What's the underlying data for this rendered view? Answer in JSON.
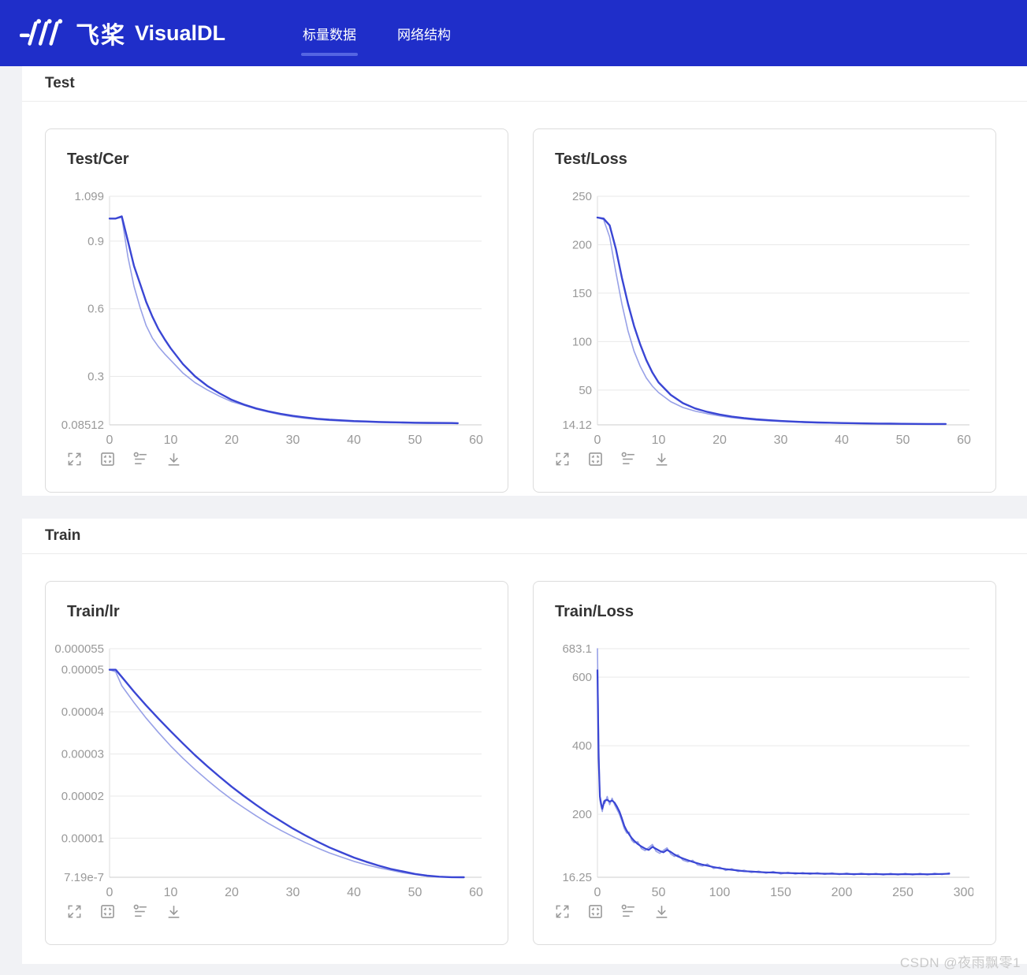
{
  "header": {
    "brand_cn": "飞桨",
    "brand_en": "VisualDL",
    "tabs": [
      {
        "label": "标量数据",
        "active": true
      },
      {
        "label": "网络结构",
        "active": false
      }
    ]
  },
  "colors": {
    "header_background": "#1f2ec9",
    "tab_underline": "#5565e2",
    "line_smoothed": "#3a46d4",
    "line_raw": "#98a1e7",
    "grid": "#e9e9e9",
    "axis": "#cccccc",
    "tick_text": "#999999"
  },
  "sections": [
    {
      "title": "Test"
    },
    {
      "title": "Train"
    }
  ],
  "toolbar": {
    "icons": [
      "maximize-icon",
      "actual-size-icon",
      "runs-filter-icon",
      "download-icon"
    ]
  },
  "watermark": {
    "text": "CSDN @夜雨飘零1"
  },
  "chart_data": [
    {
      "type": "line",
      "title": "Test/Cer",
      "xlabel": "",
      "ylabel": "",
      "xlim": [
        0,
        60
      ],
      "ylim": [
        0.08512,
        1.099
      ],
      "xticks": [
        0,
        10,
        20,
        30,
        40,
        50,
        60
      ],
      "yticks": [
        {
          "v": 1.099,
          "label": "1.099"
        },
        {
          "v": 0.9,
          "label": "0.9"
        },
        {
          "v": 0.6,
          "label": "0.6"
        },
        {
          "v": 0.3,
          "label": "0.3"
        },
        {
          "v": 0.08512,
          "label": "0.08512"
        }
      ],
      "series": [
        {
          "name": "original",
          "color": "#98a1e7",
          "width": 1.6,
          "x": [
            0,
            1,
            2,
            3,
            4,
            5,
            6,
            7,
            8,
            9,
            10,
            12,
            14,
            16,
            18,
            20,
            22,
            24,
            26,
            28,
            30,
            32,
            34,
            36,
            38,
            40,
            42,
            44,
            46,
            48,
            50,
            52,
            54,
            56,
            57
          ],
          "y": [
            1.0,
            1.0,
            1.005,
            0.83,
            0.7,
            0.605,
            0.525,
            0.47,
            0.432,
            0.4,
            0.372,
            0.315,
            0.272,
            0.24,
            0.212,
            0.188,
            0.172,
            0.155,
            0.142,
            0.13,
            0.121,
            0.114,
            0.109,
            0.105,
            0.102,
            0.0995,
            0.098,
            0.0955,
            0.0945,
            0.094,
            0.0925,
            0.0925,
            0.0915,
            0.0915,
            0.091
          ]
        },
        {
          "name": "smoothed",
          "color": "#3a46d4",
          "width": 2.4,
          "x": [
            0,
            1,
            2,
            3,
            4,
            5,
            6,
            7,
            8,
            9,
            10,
            12,
            14,
            16,
            18,
            20,
            22,
            24,
            26,
            28,
            30,
            32,
            34,
            36,
            38,
            40,
            42,
            44,
            46,
            48,
            50,
            52,
            54,
            56,
            57
          ],
          "y": [
            1.0,
            1.0,
            1.01,
            0.9,
            0.79,
            0.71,
            0.63,
            0.565,
            0.51,
            0.465,
            0.425,
            0.355,
            0.3,
            0.258,
            0.225,
            0.196,
            0.175,
            0.158,
            0.145,
            0.134,
            0.125,
            0.118,
            0.112,
            0.108,
            0.105,
            0.102,
            0.1,
            0.098,
            0.0965,
            0.0955,
            0.0945,
            0.094,
            0.0935,
            0.093,
            0.0925
          ]
        }
      ]
    },
    {
      "type": "line",
      "title": "Test/Loss",
      "xlabel": "",
      "ylabel": "",
      "xlim": [
        0,
        60
      ],
      "ylim": [
        14.12,
        250
      ],
      "xticks": [
        0,
        10,
        20,
        30,
        40,
        50,
        60
      ],
      "yticks": [
        {
          "v": 250,
          "label": "250"
        },
        {
          "v": 200,
          "label": "200"
        },
        {
          "v": 150,
          "label": "150"
        },
        {
          "v": 100,
          "label": "100"
        },
        {
          "v": 50,
          "label": "50"
        },
        {
          "v": 14.12,
          "label": "14.12"
        }
      ],
      "series": [
        {
          "name": "original",
          "color": "#98a1e7",
          "width": 1.6,
          "x": [
            0,
            1,
            2,
            3,
            4,
            5,
            6,
            7,
            8,
            9,
            10,
            12,
            14,
            16,
            18,
            20,
            22,
            24,
            26,
            28,
            30,
            32,
            34,
            36,
            38,
            40,
            42,
            44,
            46,
            48,
            50,
            52,
            54,
            56,
            57
          ],
          "y": [
            228,
            226,
            208,
            172,
            139,
            111,
            90,
            74.5,
            62.5,
            54,
            47.5,
            38,
            32,
            28.3,
            25.6,
            23.4,
            21.6,
            20.2,
            19.1,
            18.3,
            17.6,
            17.1,
            16.6,
            16.3,
            16.0,
            15.8,
            15.55,
            15.4,
            15.25,
            15.15,
            15.05,
            15.0,
            14.95,
            14.9,
            14.9
          ]
        },
        {
          "name": "smoothed",
          "color": "#3a46d4",
          "width": 2.4,
          "x": [
            0,
            1,
            2,
            3,
            4,
            5,
            6,
            7,
            8,
            9,
            10,
            12,
            14,
            16,
            18,
            20,
            22,
            24,
            26,
            28,
            30,
            32,
            34,
            36,
            38,
            40,
            42,
            44,
            46,
            48,
            50,
            52,
            54,
            56,
            57
          ],
          "y": [
            228,
            227,
            220,
            196,
            166,
            139,
            116,
            97,
            81,
            68,
            58,
            45,
            36.5,
            31,
            27.5,
            24.8,
            22.6,
            21.0,
            19.8,
            18.9,
            18.1,
            17.5,
            17.0,
            16.6,
            16.3,
            16.0,
            15.8,
            15.6,
            15.45,
            15.3,
            15.2,
            15.1,
            15.05,
            15.0,
            15.0
          ]
        }
      ]
    },
    {
      "type": "line",
      "title": "Train/lr",
      "xlabel": "",
      "ylabel": "",
      "xlim": [
        0,
        60
      ],
      "ylim": [
        7.19e-07,
        5.5e-05
      ],
      "xticks": [
        0,
        10,
        20,
        30,
        40,
        50,
        60
      ],
      "yticks": [
        {
          "v": 5.5e-05,
          "label": "0.000055"
        },
        {
          "v": 5e-05,
          "label": "0.00005"
        },
        {
          "v": 4e-05,
          "label": "0.00004"
        },
        {
          "v": 3e-05,
          "label": "0.00003"
        },
        {
          "v": 2e-05,
          "label": "0.00002"
        },
        {
          "v": 1e-05,
          "label": "0.00001"
        },
        {
          "v": 7.19e-07,
          "label": "7.19e-7"
        }
      ],
      "series": [
        {
          "name": "original",
          "color": "#98a1e7",
          "width": 1.6,
          "x": [
            0,
            1,
            2,
            4,
            6,
            8,
            10,
            12,
            14,
            16,
            18,
            20,
            22,
            24,
            26,
            28,
            30,
            32,
            34,
            36,
            38,
            40,
            42,
            44,
            46,
            48,
            50,
            52,
            54,
            56,
            58
          ],
          "y": [
            5e-05,
            4.95e-05,
            4.62e-05,
            4.22e-05,
            3.85e-05,
            3.51e-05,
            3.19e-05,
            2.9e-05,
            2.63e-05,
            2.38e-05,
            2.14e-05,
            1.92e-05,
            1.72e-05,
            1.53e-05,
            1.35e-05,
            1.19e-05,
            1.04e-05,
            9e-06,
            7.7e-06,
            6.5e-06,
            5.5e-06,
            4.5e-06,
            3.7e-06,
            3e-06,
            2.4e-06,
            1.8e-06,
            1.4e-06,
            1e-06,
            8e-07,
            7.2e-07,
            7.19e-07
          ]
        },
        {
          "name": "smoothed",
          "color": "#3a46d4",
          "width": 2.4,
          "x": [
            0,
            1,
            2,
            4,
            6,
            8,
            10,
            12,
            14,
            16,
            18,
            20,
            22,
            24,
            26,
            28,
            30,
            32,
            34,
            36,
            38,
            40,
            42,
            44,
            46,
            48,
            50,
            52,
            54,
            56,
            58
          ],
          "y": [
            5e-05,
            5e-05,
            4.83e-05,
            4.48e-05,
            4.15e-05,
            3.84e-05,
            3.54e-05,
            3.25e-05,
            2.97e-05,
            2.71e-05,
            2.46e-05,
            2.22e-05,
            2e-05,
            1.79e-05,
            1.59e-05,
            1.41e-05,
            1.23e-05,
            1.07e-05,
            9.2e-06,
            7.8e-06,
            6.6e-06,
            5.4e-06,
            4.4e-06,
            3.5e-06,
            2.7e-06,
            2.1e-06,
            1.5e-06,
            1.1e-06,
            8.5e-07,
            7.4e-07,
            7.19e-07
          ]
        }
      ]
    },
    {
      "type": "line",
      "title": "Train/Loss",
      "xlabel": "",
      "ylabel": "",
      "xlim": [
        0,
        300
      ],
      "ylim": [
        16.25,
        683.1
      ],
      "xticks": [
        0,
        50,
        100,
        150,
        200,
        250,
        300
      ],
      "yticks": [
        {
          "v": 683.1,
          "label": "683.1"
        },
        {
          "v": 600,
          "label": "600"
        },
        {
          "v": 400,
          "label": "400"
        },
        {
          "v": 200,
          "label": "200"
        },
        {
          "v": 16.25,
          "label": "16.25"
        }
      ],
      "series": [
        {
          "name": "original",
          "color": "#98a1e7",
          "width": 1.6,
          "x": [
            0,
            1,
            2,
            3,
            4,
            5,
            6,
            8,
            10,
            12,
            14,
            16,
            18,
            20,
            22,
            24,
            26,
            28,
            30,
            33,
            36,
            39,
            42,
            45,
            48,
            51,
            54,
            57,
            60,
            63,
            66,
            70,
            74,
            78,
            82,
            86,
            90,
            95,
            100,
            105,
            110,
            115,
            120,
            126,
            132,
            138,
            144,
            150,
            156,
            162,
            168,
            174,
            180,
            186,
            192,
            198,
            204,
            210,
            216,
            222,
            228,
            234,
            240,
            246,
            252,
            258,
            264,
            270,
            276,
            282,
            288
          ],
          "y": [
            683,
            420,
            242,
            222,
            208,
            238,
            232,
            252,
            228,
            247,
            228,
            214,
            200,
            180,
            158,
            145,
            148,
            124,
            117,
            120,
            100,
            94,
            103,
            112,
            92,
            86,
            95,
            102,
            84,
            77,
            82,
            66,
            61,
            66,
            52,
            49,
            55,
            42,
            46,
            36,
            41,
            33,
            37,
            30,
            34,
            28,
            33,
            26,
            31,
            25.5,
            30,
            25,
            29.5,
            24.5,
            29,
            24,
            28.5,
            23.5,
            28,
            23.5,
            27.5,
            23,
            27.5,
            23,
            27.5,
            23,
            27.5,
            23,
            28,
            24,
            29
          ]
        },
        {
          "name": "smoothed",
          "color": "#3a46d4",
          "width": 2.2,
          "x": [
            0,
            1,
            2,
            3,
            4,
            5,
            6,
            8,
            10,
            12,
            14,
            16,
            18,
            20,
            22,
            24,
            26,
            28,
            30,
            33,
            36,
            39,
            42,
            45,
            48,
            51,
            54,
            57,
            60,
            63,
            66,
            70,
            74,
            78,
            82,
            86,
            90,
            95,
            100,
            105,
            110,
            115,
            120,
            126,
            132,
            138,
            144,
            150,
            156,
            162,
            168,
            174,
            180,
            186,
            192,
            198,
            204,
            210,
            216,
            222,
            228,
            234,
            240,
            246,
            252,
            258,
            264,
            270,
            276,
            282,
            288
          ],
          "y": [
            620,
            365,
            252,
            230,
            216,
            230,
            240,
            242,
            237,
            240,
            234,
            222,
            208,
            188,
            166,
            152,
            141,
            131,
            123,
            113,
            106,
            100,
            96,
            105,
            99,
            93,
            89,
            96,
            90,
            83,
            77,
            71,
            66,
            61,
            57,
            53,
            50,
            46,
            43,
            40,
            38,
            36,
            34,
            33,
            31.5,
            30.5,
            30,
            29,
            28.5,
            28,
            27.5,
            27.5,
            27,
            26.5,
            26.5,
            26,
            26,
            25.5,
            26,
            25.5,
            25.5,
            25,
            25.5,
            25,
            25.5,
            25,
            25.5,
            25,
            25.5,
            26,
            26.5
          ]
        }
      ]
    }
  ]
}
